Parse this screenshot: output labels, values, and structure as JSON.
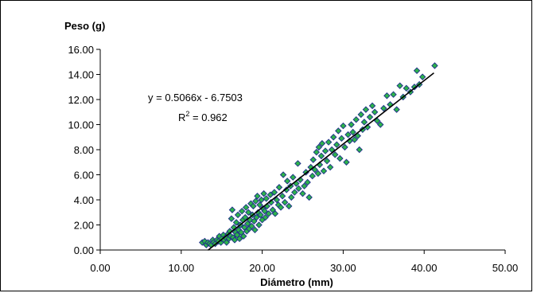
{
  "chart_data": {
    "type": "scatter",
    "ylabel": "Peso (g)",
    "xlabel": "Diámetro (mm)",
    "xlim": [
      0,
      50
    ],
    "ylim": [
      0,
      16
    ],
    "x_ticks": [
      "0.00",
      "10.00",
      "20.00",
      "30.00",
      "40.00",
      "50.00"
    ],
    "y_ticks": [
      "0.00",
      "2.00",
      "4.00",
      "6.00",
      "8.00",
      "10.00",
      "12.00",
      "14.00",
      "16.00"
    ],
    "grid": false,
    "marker": {
      "shape": "diamond",
      "fill": "#2db34a",
      "stroke": "#1f2f8a"
    },
    "trendline": {
      "slope": 0.5066,
      "intercept": -6.7503,
      "x_range": [
        13.3,
        41.2
      ],
      "color": "#000000",
      "equation_text": "y = 0.5066x - 6.7503",
      "r2_prefix": "R",
      "r2_sup": "2",
      "r2_suffix": " = 0.962"
    },
    "points": [
      [
        12.6,
        0.6
      ],
      [
        12.9,
        0.7
      ],
      [
        13.1,
        0.4
      ],
      [
        13.3,
        0.6
      ],
      [
        13.5,
        0.5
      ],
      [
        13.7,
        0.4
      ],
      [
        13.9,
        0.8
      ],
      [
        14.0,
        0.6
      ],
      [
        14.2,
        0.5
      ],
      [
        14.4,
        0.8
      ],
      [
        14.6,
        0.7
      ],
      [
        14.7,
        1.1
      ],
      [
        14.9,
        0.6
      ],
      [
        15.0,
        0.9
      ],
      [
        15.2,
        1.2
      ],
      [
        15.3,
        0.8
      ],
      [
        15.5,
        1.0
      ],
      [
        15.6,
        0.6
      ],
      [
        15.8,
        1.3
      ],
      [
        15.9,
        0.9
      ],
      [
        16.0,
        1.5
      ],
      [
        16.1,
        1.1
      ],
      [
        16.2,
        2.5
      ],
      [
        16.3,
        3.2
      ],
      [
        16.4,
        1.0
      ],
      [
        16.5,
        1.8
      ],
      [
        16.6,
        0.8
      ],
      [
        16.7,
        1.4
      ],
      [
        16.8,
        2.2
      ],
      [
        16.9,
        1.2
      ],
      [
        17.0,
        2.8
      ],
      [
        17.1,
        1.6
      ],
      [
        17.2,
        0.9
      ],
      [
        17.3,
        2.0
      ],
      [
        17.4,
        1.4
      ],
      [
        17.5,
        3.1
      ],
      [
        17.6,
        2.4
      ],
      [
        17.7,
        1.1
      ],
      [
        17.8,
        1.8
      ],
      [
        17.9,
        2.6
      ],
      [
        18.0,
        3.4
      ],
      [
        18.1,
        1.5
      ],
      [
        18.2,
        2.1
      ],
      [
        18.3,
        3.0
      ],
      [
        18.4,
        1.7
      ],
      [
        18.5,
        2.4
      ],
      [
        18.6,
        3.7
      ],
      [
        18.7,
        1.9
      ],
      [
        18.8,
        2.8
      ],
      [
        18.9,
        3.5
      ],
      [
        19.0,
        2.3
      ],
      [
        19.1,
        1.6
      ],
      [
        19.2,
        3.9
      ],
      [
        19.3,
        2.6
      ],
      [
        19.4,
        4.3
      ],
      [
        19.5,
        3.0
      ],
      [
        19.6,
        2.0
      ],
      [
        19.7,
        3.6
      ],
      [
        19.8,
        2.8
      ],
      [
        19.9,
        4.0
      ],
      [
        20.0,
        2.4
      ],
      [
        20.1,
        3.3
      ],
      [
        20.2,
        4.5
      ],
      [
        20.3,
        3.1
      ],
      [
        20.4,
        2.6
      ],
      [
        20.5,
        4.1
      ],
      [
        20.6,
        3.5
      ],
      [
        20.8,
        2.9
      ],
      [
        21.0,
        4.4
      ],
      [
        21.1,
        3.8
      ],
      [
        21.3,
        3.2
      ],
      [
        21.5,
        4.6
      ],
      [
        21.6,
        2.9
      ],
      [
        21.8,
        4.0
      ],
      [
        22.0,
        3.6
      ],
      [
        22.1,
        5.0
      ],
      [
        22.3,
        3.4
      ],
      [
        22.5,
        4.3
      ],
      [
        22.6,
        6.0
      ],
      [
        22.8,
        3.8
      ],
      [
        23.0,
        4.8
      ],
      [
        23.1,
        5.5
      ],
      [
        23.3,
        3.5
      ],
      [
        23.5,
        5.1
      ],
      [
        23.6,
        4.2
      ],
      [
        23.8,
        5.8
      ],
      [
        24.0,
        4.6
      ],
      [
        24.2,
        5.3
      ],
      [
        24.4,
        6.9
      ],
      [
        24.5,
        4.9
      ],
      [
        24.7,
        5.6
      ],
      [
        25.0,
        4.5
      ],
      [
        25.2,
        5.1
      ],
      [
        25.4,
        6.2
      ],
      [
        25.6,
        5.4
      ],
      [
        25.8,
        4.2
      ],
      [
        26.0,
        6.6
      ],
      [
        26.2,
        5.9
      ],
      [
        26.3,
        7.2
      ],
      [
        26.5,
        6.4
      ],
      [
        26.7,
        7.8
      ],
      [
        26.9,
        6.1
      ],
      [
        27.0,
        8.2
      ],
      [
        27.1,
        6.8
      ],
      [
        27.3,
        7.5
      ],
      [
        27.4,
        8.5
      ],
      [
        27.6,
        6.3
      ],
      [
        27.8,
        7.9
      ],
      [
        28.0,
        7.1
      ],
      [
        28.2,
        8.6
      ],
      [
        28.4,
        6.6
      ],
      [
        28.6,
        8.0
      ],
      [
        28.8,
        9.0
      ],
      [
        29.0,
        7.6
      ],
      [
        29.2,
        8.4
      ],
      [
        29.4,
        9.5
      ],
      [
        29.6,
        7.3
      ],
      [
        29.8,
        8.9
      ],
      [
        30.0,
        9.9
      ],
      [
        30.2,
        8.2
      ],
      [
        30.4,
        7.0
      ],
      [
        30.6,
        9.2
      ],
      [
        30.8,
        8.7
      ],
      [
        31.0,
        10.0
      ],
      [
        31.2,
        9.4
      ],
      [
        31.4,
        8.8
      ],
      [
        31.6,
        10.4
      ],
      [
        31.8,
        9.1
      ],
      [
        32.0,
        8.0
      ],
      [
        32.2,
        10.8
      ],
      [
        32.4,
        9.6
      ],
      [
        32.6,
        10.2
      ],
      [
        32.8,
        11.2
      ],
      [
        33.0,
        9.8
      ],
      [
        33.3,
        10.6
      ],
      [
        33.6,
        11.5
      ],
      [
        33.9,
        11.0
      ],
      [
        34.2,
        10.3
      ],
      [
        34.6,
        10.0
      ],
      [
        35.0,
        11.3
      ],
      [
        35.4,
        12.3
      ],
      [
        35.8,
        11.6
      ],
      [
        36.2,
        12.4
      ],
      [
        36.6,
        11.2
      ],
      [
        37.0,
        13.1
      ],
      [
        37.4,
        12.2
      ],
      [
        37.8,
        12.9
      ],
      [
        38.3,
        12.6
      ],
      [
        38.8,
        13.0
      ],
      [
        39.1,
        14.3
      ],
      [
        39.4,
        13.2
      ],
      [
        39.8,
        13.8
      ],
      [
        41.3,
        14.7
      ]
    ]
  }
}
